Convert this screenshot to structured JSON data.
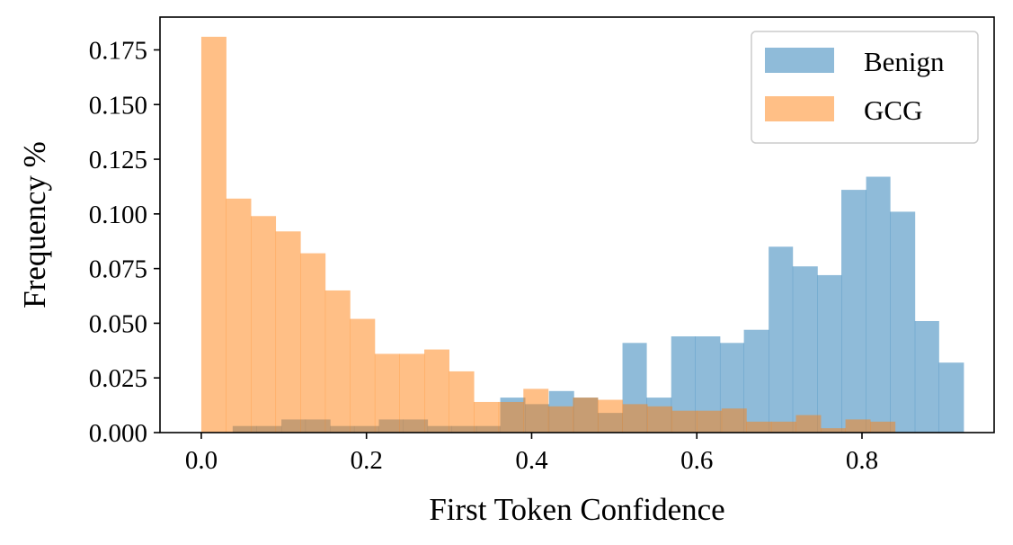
{
  "chart_data": {
    "type": "bar",
    "title": "",
    "xlabel": "First Token Confidence",
    "ylabel": "Frequency %",
    "xlim": [
      -0.05,
      0.96
    ],
    "ylim": [
      0,
      0.19
    ],
    "xticks": [
      0.0,
      0.2,
      0.4,
      0.6,
      0.8
    ],
    "xtick_labels": [
      "0.0",
      "0.2",
      "0.4",
      "0.6",
      "0.8"
    ],
    "yticks": [
      0.0,
      0.025,
      0.05,
      0.075,
      0.1,
      0.125,
      0.15,
      0.175
    ],
    "ytick_labels": [
      "0.000",
      "0.025",
      "0.050",
      "0.075",
      "0.100",
      "0.125",
      "0.150",
      "0.175"
    ],
    "grid": false,
    "legend": {
      "placement": "top-right",
      "entries": [
        "Benign",
        "GCG"
      ]
    },
    "series": [
      {
        "name": "Benign",
        "color": "#1f77b4",
        "alpha": 0.5,
        "bins": [
          [
            0.038,
            0.067,
            0.003
          ],
          [
            0.067,
            0.097,
            0.003
          ],
          [
            0.097,
            0.126,
            0.006
          ],
          [
            0.126,
            0.156,
            0.006
          ],
          [
            0.156,
            0.185,
            0.003
          ],
          [
            0.185,
            0.215,
            0.003
          ],
          [
            0.215,
            0.244,
            0.006
          ],
          [
            0.244,
            0.274,
            0.006
          ],
          [
            0.274,
            0.303,
            0.003
          ],
          [
            0.303,
            0.333,
            0.003
          ],
          [
            0.333,
            0.362,
            0.003
          ],
          [
            0.362,
            0.392,
            0.016
          ],
          [
            0.392,
            0.421,
            0.013
          ],
          [
            0.421,
            0.451,
            0.019
          ],
          [
            0.451,
            0.48,
            0.016
          ],
          [
            0.48,
            0.51,
            0.009
          ],
          [
            0.51,
            0.539,
            0.041
          ],
          [
            0.539,
            0.569,
            0.016
          ],
          [
            0.569,
            0.598,
            0.044
          ],
          [
            0.598,
            0.628,
            0.044
          ],
          [
            0.628,
            0.657,
            0.041
          ],
          [
            0.657,
            0.687,
            0.047
          ],
          [
            0.687,
            0.716,
            0.085
          ],
          [
            0.716,
            0.746,
            0.076
          ],
          [
            0.746,
            0.775,
            0.072
          ],
          [
            0.775,
            0.805,
            0.111
          ],
          [
            0.805,
            0.834,
            0.117
          ],
          [
            0.834,
            0.864,
            0.101
          ],
          [
            0.864,
            0.893,
            0.051
          ],
          [
            0.893,
            0.923,
            0.032
          ]
        ]
      },
      {
        "name": "GCG",
        "color": "#ff7f0e",
        "alpha": 0.5,
        "bins": [
          [
            0.0,
            0.03,
            0.181
          ],
          [
            0.03,
            0.06,
            0.107
          ],
          [
            0.06,
            0.09,
            0.099
          ],
          [
            0.09,
            0.12,
            0.092
          ],
          [
            0.12,
            0.15,
            0.082
          ],
          [
            0.15,
            0.18,
            0.065
          ],
          [
            0.18,
            0.21,
            0.052
          ],
          [
            0.21,
            0.24,
            0.036
          ],
          [
            0.24,
            0.27,
            0.036
          ],
          [
            0.27,
            0.3,
            0.038
          ],
          [
            0.3,
            0.33,
            0.028
          ],
          [
            0.33,
            0.36,
            0.014
          ],
          [
            0.36,
            0.39,
            0.014
          ],
          [
            0.39,
            0.42,
            0.02
          ],
          [
            0.42,
            0.45,
            0.012
          ],
          [
            0.45,
            0.48,
            0.016
          ],
          [
            0.48,
            0.51,
            0.015
          ],
          [
            0.51,
            0.54,
            0.013
          ],
          [
            0.54,
            0.57,
            0.012
          ],
          [
            0.57,
            0.6,
            0.01
          ],
          [
            0.6,
            0.63,
            0.01
          ],
          [
            0.63,
            0.66,
            0.011
          ],
          [
            0.66,
            0.69,
            0.005
          ],
          [
            0.69,
            0.72,
            0.005
          ],
          [
            0.72,
            0.75,
            0.008
          ],
          [
            0.75,
            0.78,
            0.002
          ],
          [
            0.78,
            0.81,
            0.006
          ],
          [
            0.81,
            0.84,
            0.005
          ]
        ]
      }
    ]
  }
}
